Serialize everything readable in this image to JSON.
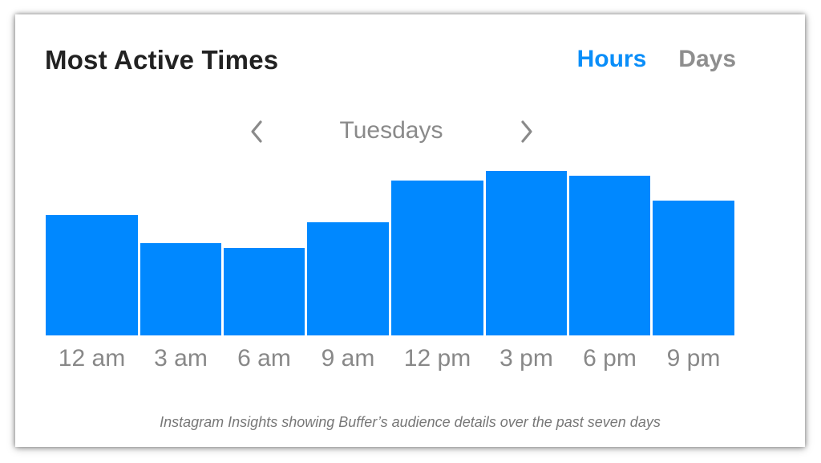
{
  "card": {
    "title": "Most Active Times",
    "tabs": [
      {
        "label": "Hours",
        "active": true
      },
      {
        "label": "Days",
        "active": false
      }
    ],
    "day_selector": {
      "current": "Tuesdays",
      "prev_icon": "chevron-left-icon",
      "next_icon": "chevron-right-icon"
    }
  },
  "caption": "Instagram Insights showing Buffer’s audience details over the past seven days",
  "colors": {
    "accent": "#0a8ef9",
    "bar": "#0088ff",
    "inactive": "#8e8e8e"
  },
  "chart_data": {
    "type": "bar",
    "categories": [
      "12 am",
      "3 am",
      "6 am",
      "9 am",
      "12 pm",
      "3 pm",
      "6 pm",
      "9 pm"
    ],
    "values": [
      0.73,
      0.56,
      0.53,
      0.69,
      0.94,
      1.0,
      0.97,
      0.82
    ],
    "title": "",
    "xlabel": "",
    "ylabel": "",
    "ylim": [
      0,
      1
    ],
    "grid": false
  }
}
